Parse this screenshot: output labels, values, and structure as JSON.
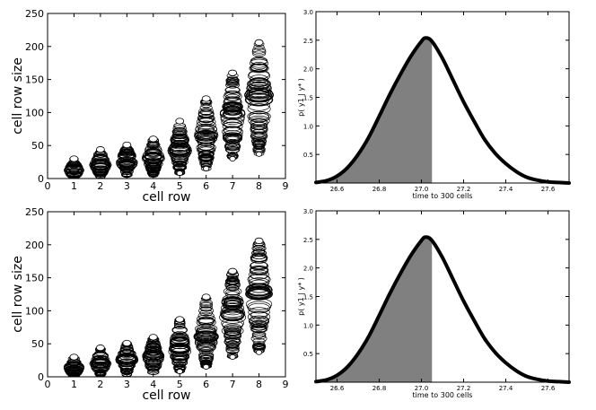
{
  "chart_data": [
    {
      "type": "scatter",
      "id": "scatter_top",
      "title": "",
      "xlabel": "cell row",
      "ylabel": "cell row size",
      "xlim": [
        0,
        9
      ],
      "ylim": [
        0,
        250
      ],
      "xticks": [
        0,
        1,
        2,
        3,
        4,
        5,
        6,
        7,
        8,
        9
      ],
      "yticks": [
        0,
        50,
        100,
        150,
        200,
        250
      ],
      "marker": "open-circle",
      "series": [
        {
          "x": 1,
          "min": 0,
          "max": 30,
          "center": 12
        },
        {
          "x": 2,
          "min": 2,
          "max": 44,
          "center": 20
        },
        {
          "x": 3,
          "min": 3,
          "max": 51,
          "center": 26
        },
        {
          "x": 4,
          "min": 4,
          "max": 60,
          "center": 30
        },
        {
          "x": 5,
          "min": 8,
          "max": 87,
          "center": 42
        },
        {
          "x": 6,
          "min": 15,
          "max": 121,
          "center": 60
        },
        {
          "x": 7,
          "min": 30,
          "max": 160,
          "center": 90
        },
        {
          "x": 8,
          "min": 37,
          "max": 206,
          "center": 125
        }
      ]
    },
    {
      "type": "area",
      "id": "density_top",
      "title": "",
      "xlabel": "time to 300 cells",
      "ylabel": "p( y1 | y* )",
      "xlim": [
        26.5,
        27.7
      ],
      "ylim": [
        0,
        3.0
      ],
      "xticks": [
        "26.6",
        "26.8",
        "27.0",
        "27.2",
        "27.4",
        "27.6"
      ],
      "yticks": [
        "0.5",
        "1.0",
        "1.5",
        "2.0",
        "2.5",
        "3.0"
      ],
      "shaded_until": 27.05,
      "x": [
        26.5,
        26.55,
        26.6,
        26.65,
        26.7,
        26.75,
        26.8,
        26.85,
        26.9,
        26.95,
        27.0,
        27.02,
        27.05,
        27.1,
        27.15,
        27.2,
        27.25,
        27.3,
        27.35,
        27.4,
        27.45,
        27.5,
        27.55,
        27.6,
        27.65,
        27.7
      ],
      "y": [
        0.01,
        0.04,
        0.12,
        0.27,
        0.5,
        0.8,
        1.17,
        1.55,
        1.9,
        2.22,
        2.48,
        2.54,
        2.48,
        2.18,
        1.8,
        1.42,
        1.08,
        0.76,
        0.52,
        0.34,
        0.2,
        0.1,
        0.05,
        0.02,
        0.01,
        0.0
      ]
    },
    {
      "type": "scatter",
      "id": "scatter_bottom",
      "title": "",
      "xlabel": "cell row",
      "ylabel": "cell row size",
      "xlim": [
        0,
        9
      ],
      "ylim": [
        0,
        250
      ],
      "xticks": [
        0,
        1,
        2,
        3,
        4,
        5,
        6,
        7,
        8,
        9
      ],
      "yticks": [
        0,
        50,
        100,
        150,
        200,
        250
      ],
      "marker": "open-circle",
      "series": [
        {
          "x": 1,
          "min": 0,
          "max": 30,
          "center": 12
        },
        {
          "x": 2,
          "min": 2,
          "max": 44,
          "center": 20
        },
        {
          "x": 3,
          "min": 3,
          "max": 51,
          "center": 26
        },
        {
          "x": 4,
          "min": 4,
          "max": 60,
          "center": 30
        },
        {
          "x": 5,
          "min": 8,
          "max": 87,
          "center": 42
        },
        {
          "x": 6,
          "min": 15,
          "max": 121,
          "center": 60
        },
        {
          "x": 7,
          "min": 30,
          "max": 160,
          "center": 90
        },
        {
          "x": 8,
          "min": 37,
          "max": 206,
          "center": 125
        }
      ]
    },
    {
      "type": "area",
      "id": "density_bottom",
      "title": "",
      "xlabel": "time to 300 cells",
      "ylabel": "p( y1 | y* )",
      "xlim": [
        26.5,
        27.7
      ],
      "ylim": [
        0,
        3.0
      ],
      "xticks": [
        "26.6",
        "26.8",
        "27.0",
        "27.2",
        "27.4",
        "27.6"
      ],
      "yticks": [
        "0.5",
        "1.0",
        "1.5",
        "2.0",
        "2.5",
        "3.0"
      ],
      "shaded_until": 27.05,
      "x": [
        26.5,
        26.55,
        26.6,
        26.65,
        26.7,
        26.75,
        26.8,
        26.85,
        26.9,
        26.95,
        27.0,
        27.02,
        27.05,
        27.1,
        27.15,
        27.2,
        27.25,
        27.3,
        27.35,
        27.4,
        27.45,
        27.5,
        27.55,
        27.6,
        27.65,
        27.7
      ],
      "y": [
        0.01,
        0.04,
        0.12,
        0.27,
        0.5,
        0.8,
        1.17,
        1.55,
        1.9,
        2.22,
        2.48,
        2.54,
        2.48,
        2.18,
        1.8,
        1.42,
        1.08,
        0.76,
        0.52,
        0.34,
        0.2,
        0.1,
        0.05,
        0.02,
        0.01,
        0.0
      ]
    }
  ],
  "colors": {
    "stroke": "#000000",
    "shade": "#808080",
    "background": "#ffffff"
  }
}
